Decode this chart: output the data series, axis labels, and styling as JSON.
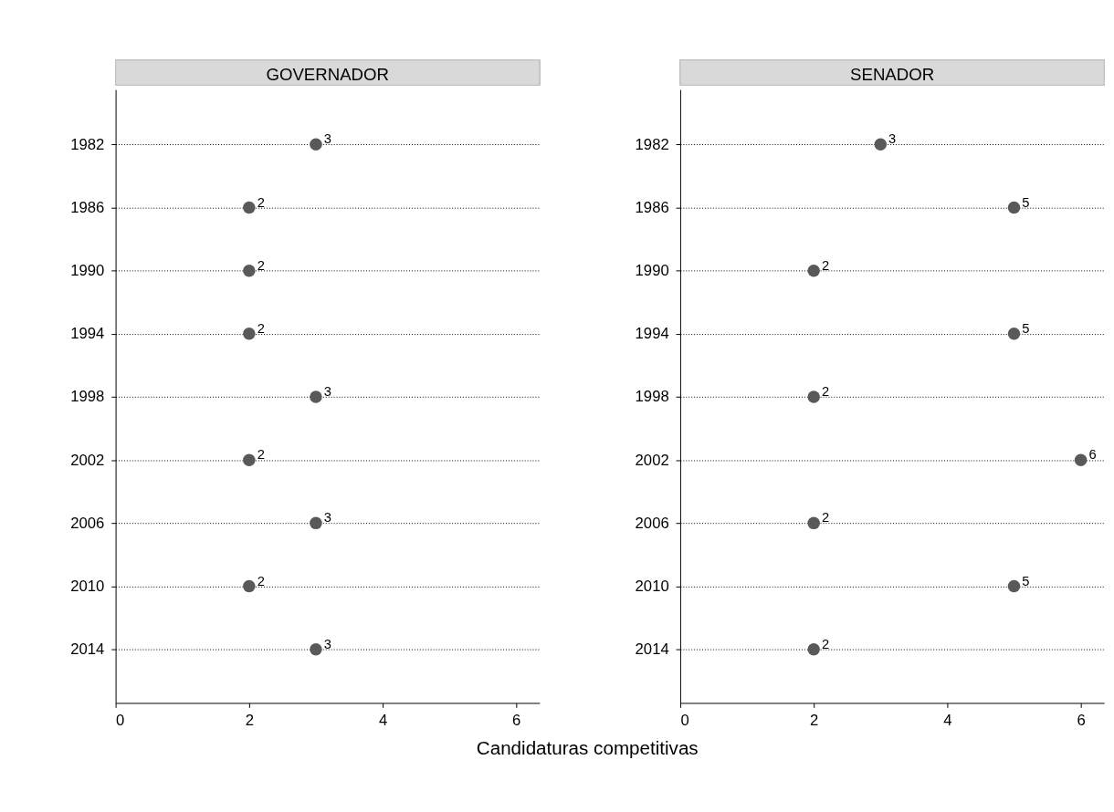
{
  "chart_data": [
    {
      "type": "scatter",
      "title": "GOVERNADOR",
      "xlabel": "Candidaturas competitivas",
      "orientation": "horizontal",
      "categories": [
        "1982",
        "1986",
        "1990",
        "1994",
        "1998",
        "2002",
        "2006",
        "2010",
        "2014"
      ],
      "values": [
        3,
        2,
        2,
        2,
        3,
        2,
        3,
        2,
        3
      ],
      "color": "#595959",
      "xlim": [
        0,
        6.35
      ],
      "xticks": [
        0,
        2,
        4,
        6
      ],
      "grid": "y",
      "data_labels": true,
      "marker": "circle"
    },
    {
      "type": "scatter",
      "title": "SENADOR",
      "orientation": "horizontal",
      "categories": [
        "1982",
        "1986",
        "1990",
        "1994",
        "1998",
        "2002",
        "2006",
        "2010",
        "2014"
      ],
      "values": [
        3,
        5,
        2,
        5,
        2,
        6,
        2,
        5,
        2
      ],
      "color": "#595959",
      "xlim": [
        0,
        6.35
      ],
      "xticks": [
        0,
        2,
        4,
        6
      ],
      "grid": "y",
      "data_labels": true,
      "marker": "circle"
    }
  ]
}
